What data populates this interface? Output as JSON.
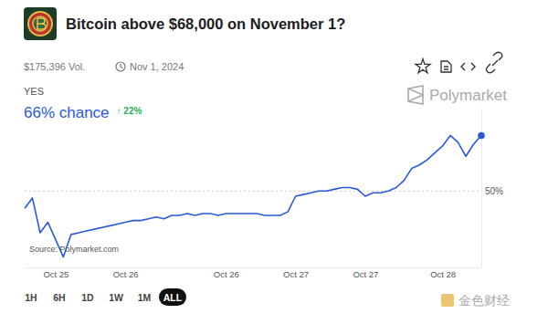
{
  "page": {
    "volume": "$175,396 Vol.",
    "end_date": "Nov 1, 2024",
    "outcome": "YES",
    "chance": "66% chance",
    "change": "↑ 22%",
    "brand": "Polymarket",
    "source": "Source: Polymarket.com",
    "ranges": [
      "1H",
      "6H",
      "1D",
      "1W",
      "1M",
      "ALL"
    ],
    "watermark": "金色财经"
  },
  "chart_data": {
    "type": "line",
    "title": "Bitcoin above $68,000 on November 1?",
    "categories": [
      null,
      null,
      null,
      null,
      "Oct 25",
      null,
      null,
      null,
      null,
      null,
      null,
      null,
      null,
      "Oct 26",
      null,
      null,
      null,
      null,
      null,
      null,
      null,
      null,
      null,
      null,
      null,
      null,
      "Oct 26",
      null,
      null,
      null,
      null,
      null,
      null,
      null,
      null,
      "Oct 27",
      null,
      null,
      null,
      null,
      null,
      null,
      null,
      null,
      "Oct 27",
      null,
      null,
      null,
      null,
      null,
      null,
      null,
      null,
      null,
      "Oct 28",
      null,
      null,
      null,
      null,
      null
    ],
    "values": [
      45,
      48,
      38,
      41,
      36,
      31,
      37.5,
      38,
      38.5,
      39,
      39.5,
      40,
      40.5,
      41,
      41.5,
      41.5,
      42,
      42.5,
      42,
      43,
      43,
      43.5,
      43,
      43.5,
      43.5,
      43,
      43.5,
      43.5,
      43.5,
      43.5,
      43.5,
      43,
      43,
      43,
      44,
      48.5,
      49,
      49.5,
      50,
      50,
      50.5,
      51,
      51,
      50.5,
      48.5,
      49.5,
      49.5,
      50,
      51,
      53,
      56.5,
      57.5,
      59,
      61,
      63,
      66,
      64,
      60,
      63.5,
      66
    ],
    "color": "#2a5ad6",
    "ylim": [
      28,
      74
    ],
    "yticks": [
      {
        "value": 50,
        "label": "50%"
      }
    ],
    "grid": true
  }
}
